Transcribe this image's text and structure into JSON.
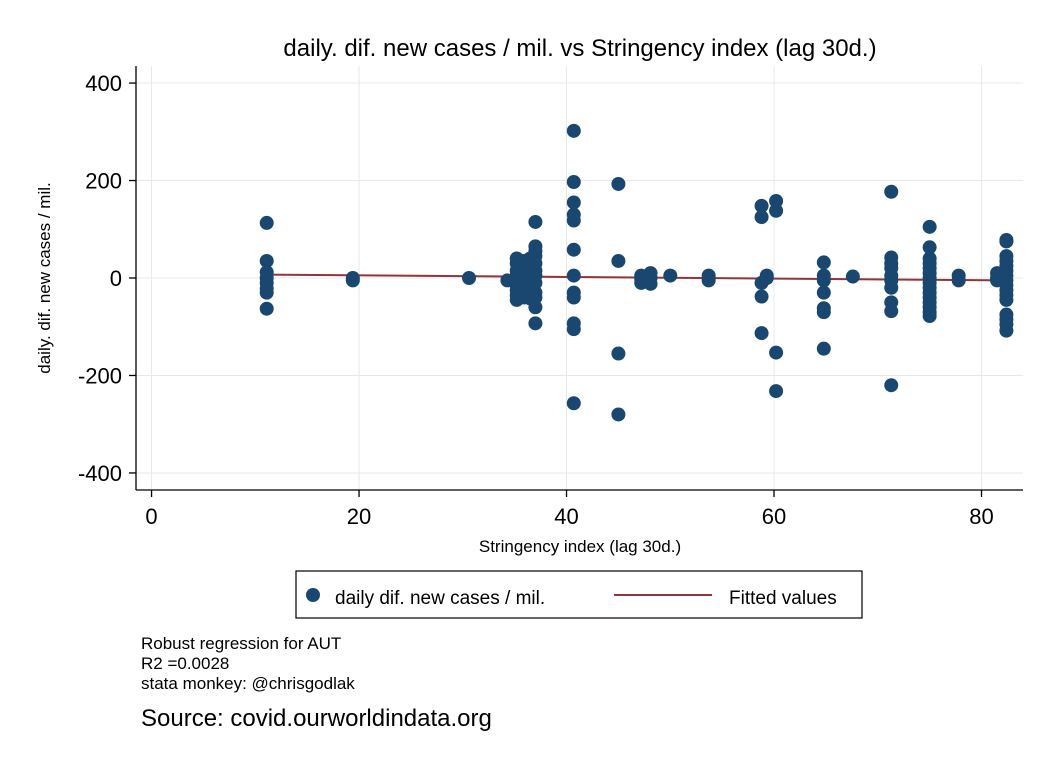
{
  "chart_data": {
    "type": "scatter",
    "title": "daily. dif. new cases / mil. vs Stringency index (lag 30d.)",
    "xlabel": "Stringency index (lag 30d.)",
    "ylabel": "daily. dif. new cases / mil.",
    "xlim": [
      -1.5,
      84
    ],
    "ylim": [
      -435,
      435
    ],
    "xticks": [
      0,
      20,
      40,
      60,
      80
    ],
    "yticks": [
      400,
      200,
      0,
      -200,
      -400
    ],
    "ytick_labels": [
      "400",
      "200",
      "0",
      "-200",
      "-400"
    ],
    "grid": true,
    "legend_position": "bottom",
    "colors": {
      "scatter": "#1a476f",
      "fit": "#90353b"
    },
    "series": [
      {
        "name": "daily dif. new cases / mil.",
        "type": "scatter",
        "points": [
          [
            11.1,
            113
          ],
          [
            11.1,
            35
          ],
          [
            11.1,
            12
          ],
          [
            11.1,
            0
          ],
          [
            11.1,
            -10
          ],
          [
            11.1,
            -22
          ],
          [
            11.1,
            -30
          ],
          [
            11.1,
            -63
          ],
          [
            19.4,
            0
          ],
          [
            19.4,
            -5
          ],
          [
            30.6,
            0
          ],
          [
            34.3,
            -5
          ],
          [
            35.2,
            40
          ],
          [
            35.2,
            30
          ],
          [
            35.2,
            15
          ],
          [
            35.2,
            5
          ],
          [
            35.2,
            -5
          ],
          [
            35.2,
            -15
          ],
          [
            35.2,
            -25
          ],
          [
            35.2,
            -35
          ],
          [
            35.2,
            -45
          ],
          [
            35.9,
            35
          ],
          [
            35.9,
            20
          ],
          [
            35.9,
            -10
          ],
          [
            35.9,
            -30
          ],
          [
            35.9,
            -40
          ],
          [
            36.5,
            40
          ],
          [
            36.5,
            25
          ],
          [
            36.5,
            10
          ],
          [
            36.5,
            0
          ],
          [
            36.5,
            -20
          ],
          [
            36.5,
            -42
          ],
          [
            37.0,
            115
          ],
          [
            37.0,
            65
          ],
          [
            37.0,
            55
          ],
          [
            37.0,
            45
          ],
          [
            37.0,
            30
          ],
          [
            37.0,
            15
          ],
          [
            37.0,
            5
          ],
          [
            37.0,
            -10
          ],
          [
            37.0,
            -30
          ],
          [
            37.0,
            -40
          ],
          [
            37.0,
            -60
          ],
          [
            37.0,
            -93
          ],
          [
            40.7,
            302
          ],
          [
            40.7,
            197
          ],
          [
            40.7,
            155
          ],
          [
            40.7,
            130
          ],
          [
            40.7,
            118
          ],
          [
            40.7,
            58
          ],
          [
            40.7,
            5
          ],
          [
            40.7,
            -30
          ],
          [
            40.7,
            -40
          ],
          [
            40.7,
            -93
          ],
          [
            40.7,
            -105
          ],
          [
            40.7,
            -257
          ],
          [
            45.0,
            193
          ],
          [
            45.0,
            35
          ],
          [
            45.0,
            -155
          ],
          [
            45.0,
            -280
          ],
          [
            47.2,
            5
          ],
          [
            47.2,
            -3
          ],
          [
            47.2,
            -10
          ],
          [
            48.1,
            10
          ],
          [
            48.1,
            0
          ],
          [
            48.1,
            -12
          ],
          [
            50.0,
            5
          ],
          [
            53.7,
            5
          ],
          [
            53.7,
            -5
          ],
          [
            58.8,
            148
          ],
          [
            58.8,
            125
          ],
          [
            58.8,
            -10
          ],
          [
            58.8,
            -38
          ],
          [
            58.8,
            -113
          ],
          [
            59.3,
            0
          ],
          [
            59.3,
            5
          ],
          [
            60.2,
            158
          ],
          [
            60.2,
            138
          ],
          [
            60.2,
            -153
          ],
          [
            60.2,
            -232
          ],
          [
            64.8,
            32
          ],
          [
            64.8,
            5
          ],
          [
            64.8,
            -5
          ],
          [
            64.8,
            -30
          ],
          [
            64.8,
            -62
          ],
          [
            64.8,
            -70
          ],
          [
            64.8,
            -145
          ],
          [
            67.6,
            3
          ],
          [
            71.3,
            177
          ],
          [
            71.3,
            42
          ],
          [
            71.3,
            30
          ],
          [
            71.3,
            20
          ],
          [
            71.3,
            5
          ],
          [
            71.3,
            -5
          ],
          [
            71.3,
            -20
          ],
          [
            71.3,
            -50
          ],
          [
            71.3,
            -68
          ],
          [
            71.3,
            -220
          ],
          [
            75.0,
            105
          ],
          [
            75.0,
            63
          ],
          [
            75.0,
            40
          ],
          [
            75.0,
            30
          ],
          [
            75.0,
            20
          ],
          [
            75.0,
            10
          ],
          [
            75.0,
            0
          ],
          [
            75.0,
            -10
          ],
          [
            75.0,
            -20
          ],
          [
            75.0,
            -30
          ],
          [
            75.0,
            -40
          ],
          [
            75.0,
            -50
          ],
          [
            75.0,
            -60
          ],
          [
            75.0,
            -70
          ],
          [
            75.0,
            -78
          ],
          [
            77.8,
            5
          ],
          [
            77.8,
            -5
          ],
          [
            81.5,
            10
          ],
          [
            81.5,
            0
          ],
          [
            81.5,
            -5
          ],
          [
            82.4,
            78
          ],
          [
            82.4,
            75
          ],
          [
            82.4,
            45
          ],
          [
            82.4,
            35
          ],
          [
            82.4,
            25
          ],
          [
            82.4,
            15
          ],
          [
            82.4,
            5
          ],
          [
            82.4,
            -5
          ],
          [
            82.4,
            -15
          ],
          [
            82.4,
            -25
          ],
          [
            82.4,
            -35
          ],
          [
            82.4,
            -45
          ],
          [
            82.4,
            -75
          ],
          [
            82.4,
            -85
          ],
          [
            82.4,
            -95
          ],
          [
            82.4,
            -108
          ]
        ]
      },
      {
        "name": "Fitted values",
        "type": "line",
        "points": [
          [
            11.1,
            7
          ],
          [
            82.4,
            -5
          ]
        ]
      }
    ]
  },
  "notes": [
    "Robust regression for AUT",
    "R2 =0.0028",
    "stata monkey: @chrisgodlak"
  ],
  "source": "Source: covid.ourworldindata.org"
}
